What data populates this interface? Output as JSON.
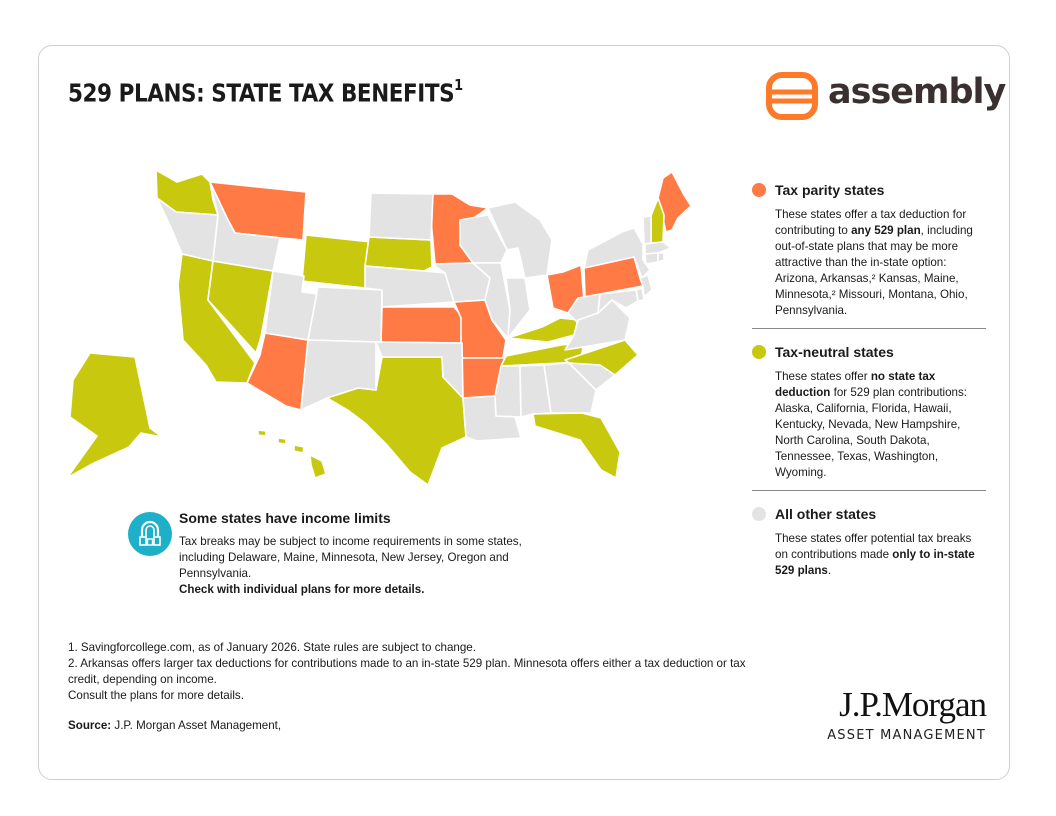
{
  "title": "529 PLANS: STATE TAX BENEFITS",
  "title_sup": "1",
  "logo": {
    "text": "assembly",
    "icon": "assembly-logo-icon"
  },
  "colors": {
    "parity": "#ff7a45",
    "neutral": "#c8c80e",
    "other": "#e3e3e3",
    "accent_teal": "#1fb0c9",
    "logo_orange": "#ff7a28"
  },
  "map": {
    "parity_states": [
      "Arizona",
      "Arkansas",
      "Kansas",
      "Maine",
      "Minnesota",
      "Missouri",
      "Montana",
      "Ohio",
      "Pennsylvania"
    ],
    "neutral_states": [
      "Alaska",
      "California",
      "Florida",
      "Hawaii",
      "Kentucky",
      "Nevada",
      "New Hampshire",
      "North Carolina",
      "South Dakota",
      "Tennessee",
      "Texas",
      "Washington",
      "Wyoming"
    ]
  },
  "legend": [
    {
      "heading": "Tax parity states",
      "color": "#ff7a45",
      "body_pre": "These states offer a tax deduction for contributing to ",
      "body_bold": "any 529 plan",
      "body_post": ", including out-of-state plans that may be more attractive than the in-state option: Arizona, Arkansas,² Kansas, Maine, Minnesota,² Missouri, Montana, Ohio, Pennsylvania."
    },
    {
      "heading": "Tax-neutral states",
      "color": "#c8c80e",
      "body_pre": "These states offer ",
      "body_bold": "no state tax deduction",
      "body_post": " for 529 plan contributions: Alaska, California, Florida, Hawaii, Kentucky, Nevada, New Hampshire, North Carolina, South Dakota, Tennessee, Texas, Washington, Wyoming."
    },
    {
      "heading": "All other states",
      "color": "#e3e3e3",
      "body_pre": "These states offer potential tax breaks on contributions made ",
      "body_bold": "only to in-state 529 plans",
      "body_post": "."
    }
  ],
  "income_limits": {
    "heading": "Some states have income limits",
    "body": "Tax breaks may be subject to income requirements in some states, including Delaware, Maine, Minnesota, New Jersey, Oregon and Pennsylvania.",
    "bold": "Check with individual plans for more details."
  },
  "footnotes": [
    "1. Savingforcollege.com, as of January 2026. State rules are subject to change.",
    "2. Arkansas offers larger tax deductions for contributions made to an in-state 529 plan. Minnesota offers either a tax deduction or tax credit, depending on income.",
    "Consult the plans for more details."
  ],
  "source": {
    "label": "Source:",
    "text": " J.P. Morgan Asset Management,"
  },
  "jpmorgan": {
    "name": "J.P.Morgan",
    "subtitle": "ASSET MANAGEMENT"
  }
}
